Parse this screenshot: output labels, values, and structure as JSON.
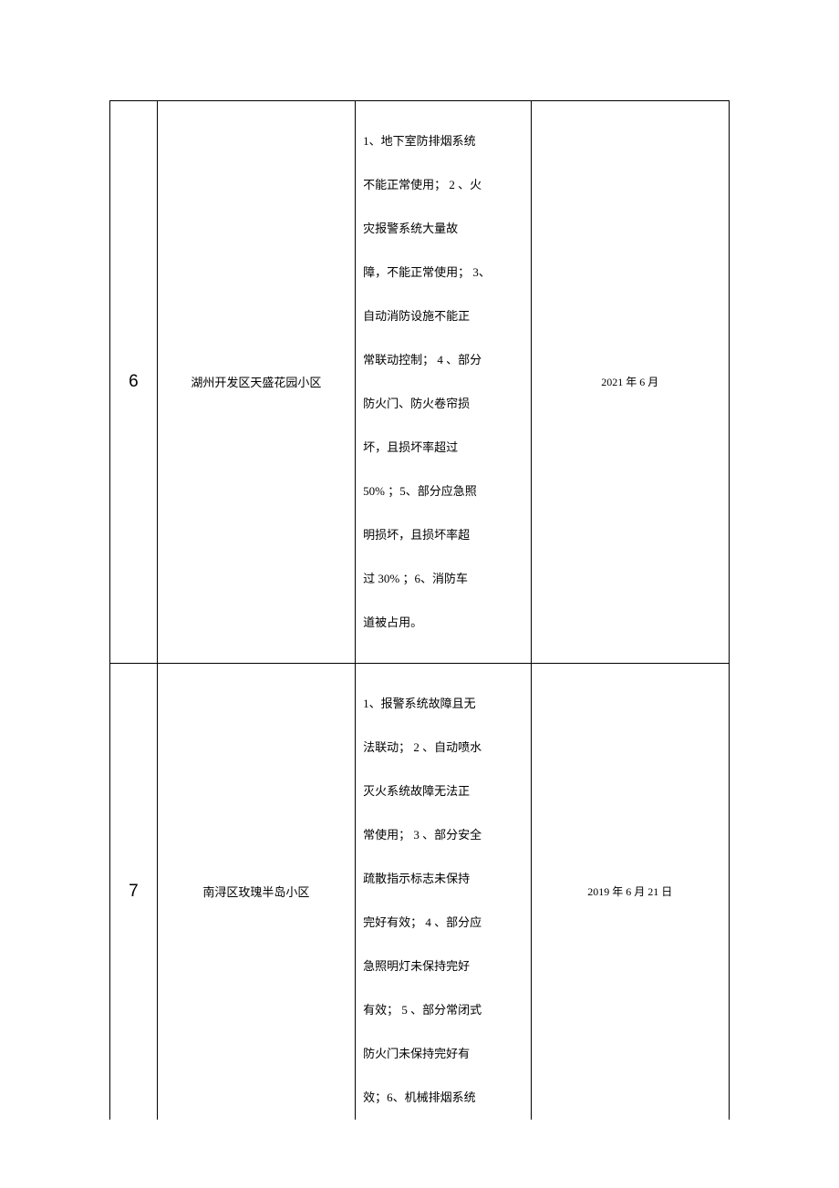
{
  "rows": [
    {
      "num": "6",
      "name": "湖州开发区天盛花园小区",
      "date": "2021 年 6 月",
      "issues": [
        "1、地下室防排烟系统",
        "不能正常使用； 2 、火",
        "灾报警系统大量故",
        "障，不能正常使用； 3、",
        "自动消防设施不能正",
        "常联动控制； 4 、部分",
        "防火门、防火卷帘损",
        "坏，且损坏率超过",
        "50% ；5、部分应急照",
        "明损坏，且损坏率超",
        "过 30% ；6、消防车",
        "道被占用。"
      ]
    },
    {
      "num": "7",
      "name": "南浔区玫瑰半岛小区",
      "date": "2019 年 6 月 21 日",
      "issues": [
        "1、报警系统故障且无",
        "法联动； 2 、自动喷水",
        "灭火系统故障无法正",
        "常使用； 3 、部分安全",
        "疏散指示标志未保持",
        "完好有效； 4 、部分应",
        "急照明灯未保持完好",
        "有效； 5 、部分常闭式",
        "防火门未保持完好有",
        "效；6、机械排烟系统"
      ]
    }
  ]
}
